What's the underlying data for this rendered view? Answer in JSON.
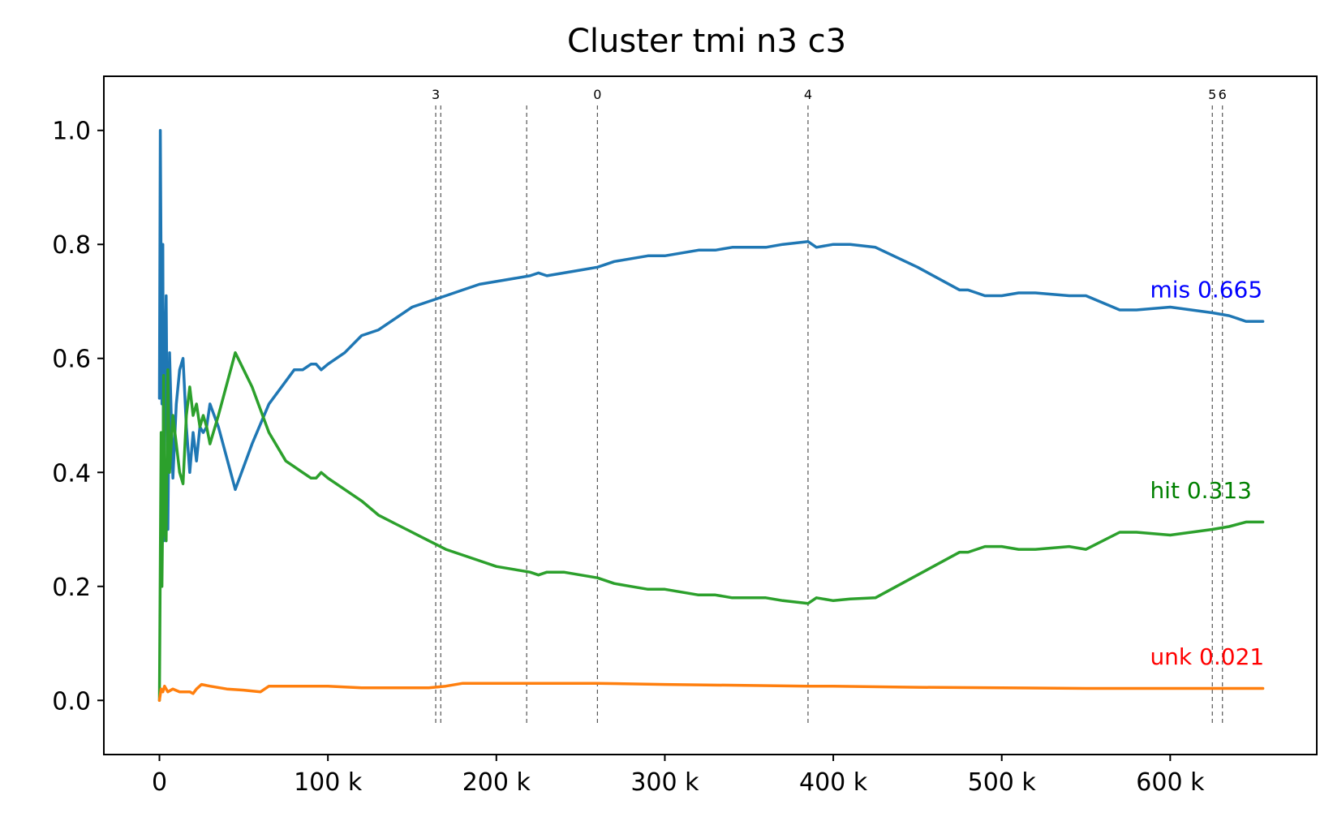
{
  "chart_data": {
    "type": "line",
    "title": "Cluster tmi n3 c3",
    "xlabel": "",
    "ylabel": "",
    "xlim": [
      -33000,
      687000
    ],
    "ylim": [
      -0.095,
      1.095
    ],
    "x_ticks": [
      0,
      100000,
      200000,
      300000,
      400000,
      500000,
      600000
    ],
    "x_tick_labels": [
      "0",
      "100 k",
      "200 k",
      "300 k",
      "400 k",
      "500 k",
      "600 k"
    ],
    "y_ticks": [
      0.0,
      0.2,
      0.4,
      0.6,
      0.8,
      1.0
    ],
    "y_tick_labels": [
      "0.0",
      "0.2",
      "0.4",
      "0.6",
      "0.8",
      "1.0"
    ],
    "grid": false,
    "legend": "none",
    "vlines": [
      {
        "x": 164000,
        "label": "3"
      },
      {
        "x": 167000,
        "label": ""
      },
      {
        "x": 218000,
        "label": ""
      },
      {
        "x": 260000,
        "label": "0"
      },
      {
        "x": 385000,
        "label": "4"
      },
      {
        "x": 625000,
        "label": "5"
      },
      {
        "x": 631000,
        "label": "6"
      }
    ],
    "series": [
      {
        "name": "mis",
        "color": "#1f77b4",
        "end_label": "mis 0.665",
        "end_label_color": "#0000ff",
        "x": [
          0,
          500,
          1000,
          1500,
          2000,
          2500,
          3000,
          4000,
          5000,
          6000,
          8000,
          10000,
          12000,
          14000,
          16000,
          18000,
          20000,
          22000,
          24000,
          26000,
          28000,
          30000,
          35000,
          45000,
          55000,
          65000,
          75000,
          80000,
          85000,
          90000,
          93000,
          96000,
          100000,
          110000,
          120000,
          130000,
          140000,
          150000,
          160000,
          170000,
          180000,
          190000,
          200000,
          210000,
          220000,
          225000,
          230000,
          240000,
          250000,
          260000,
          270000,
          280000,
          290000,
          300000,
          310000,
          320000,
          330000,
          340000,
          350000,
          360000,
          370000,
          385000,
          390000,
          400000,
          410000,
          425000,
          450000,
          475000,
          480000,
          490000,
          500000,
          510000,
          520000,
          540000,
          550000,
          570000,
          580000,
          600000,
          625000,
          635000,
          645000,
          655000
        ],
        "y": [
          0.53,
          1.0,
          0.75,
          0.52,
          0.8,
          0.28,
          0.55,
          0.71,
          0.3,
          0.61,
          0.39,
          0.52,
          0.58,
          0.6,
          0.48,
          0.4,
          0.47,
          0.42,
          0.48,
          0.47,
          0.48,
          0.52,
          0.48,
          0.37,
          0.45,
          0.52,
          0.56,
          0.58,
          0.58,
          0.59,
          0.59,
          0.58,
          0.59,
          0.61,
          0.64,
          0.65,
          0.67,
          0.69,
          0.7,
          0.71,
          0.72,
          0.73,
          0.735,
          0.74,
          0.745,
          0.75,
          0.745,
          0.75,
          0.755,
          0.76,
          0.77,
          0.775,
          0.78,
          0.78,
          0.785,
          0.79,
          0.79,
          0.795,
          0.795,
          0.795,
          0.8,
          0.805,
          0.795,
          0.8,
          0.8,
          0.795,
          0.76,
          0.72,
          0.72,
          0.71,
          0.71,
          0.715,
          0.715,
          0.71,
          0.71,
          0.685,
          0.685,
          0.69,
          0.68,
          0.675,
          0.665,
          0.665
        ]
      },
      {
        "name": "hit",
        "color": "#2ca02c",
        "end_label": "hit 0.313",
        "end_label_color": "#008000",
        "x": [
          0,
          500,
          1000,
          1500,
          2000,
          2500,
          3000,
          4000,
          5000,
          6000,
          8000,
          10000,
          12000,
          14000,
          16000,
          18000,
          20000,
          22000,
          24000,
          26000,
          28000,
          30000,
          35000,
          45000,
          55000,
          65000,
          75000,
          80000,
          85000,
          90000,
          93000,
          96000,
          100000,
          110000,
          120000,
          130000,
          140000,
          150000,
          160000,
          170000,
          180000,
          190000,
          200000,
          210000,
          220000,
          225000,
          230000,
          240000,
          250000,
          260000,
          270000,
          280000,
          290000,
          300000,
          310000,
          320000,
          330000,
          340000,
          350000,
          360000,
          370000,
          385000,
          390000,
          400000,
          410000,
          425000,
          450000,
          475000,
          480000,
          490000,
          500000,
          510000,
          520000,
          540000,
          550000,
          570000,
          580000,
          600000,
          625000,
          635000,
          645000,
          655000
        ],
        "y": [
          0.0,
          0.25,
          0.47,
          0.2,
          0.35,
          0.57,
          0.3,
          0.28,
          0.58,
          0.4,
          0.5,
          0.45,
          0.4,
          0.38,
          0.5,
          0.55,
          0.5,
          0.52,
          0.48,
          0.5,
          0.48,
          0.45,
          0.5,
          0.61,
          0.55,
          0.47,
          0.42,
          0.41,
          0.4,
          0.39,
          0.39,
          0.4,
          0.39,
          0.37,
          0.35,
          0.325,
          0.31,
          0.295,
          0.28,
          0.265,
          0.255,
          0.245,
          0.235,
          0.23,
          0.225,
          0.22,
          0.225,
          0.225,
          0.22,
          0.215,
          0.205,
          0.2,
          0.195,
          0.195,
          0.19,
          0.185,
          0.185,
          0.18,
          0.18,
          0.18,
          0.175,
          0.17,
          0.18,
          0.175,
          0.178,
          0.18,
          0.22,
          0.26,
          0.26,
          0.27,
          0.27,
          0.265,
          0.265,
          0.27,
          0.265,
          0.295,
          0.295,
          0.29,
          0.3,
          0.305,
          0.313,
          0.313
        ]
      },
      {
        "name": "unk",
        "color": "#ff7f0e",
        "end_label": "unk 0.021",
        "end_label_color": "#ff0000",
        "x": [
          0,
          1000,
          2000,
          3000,
          5000,
          8000,
          12000,
          18000,
          20000,
          22000,
          25000,
          30000,
          40000,
          50000,
          60000,
          65000,
          80000,
          100000,
          120000,
          140000,
          160000,
          170000,
          180000,
          200000,
          220000,
          260000,
          300000,
          385000,
          400000,
          450000,
          500000,
          550000,
          600000,
          655000
        ],
        "y": [
          0.0,
          0.02,
          0.015,
          0.025,
          0.015,
          0.02,
          0.015,
          0.015,
          0.012,
          0.02,
          0.028,
          0.025,
          0.02,
          0.018,
          0.015,
          0.025,
          0.025,
          0.025,
          0.022,
          0.022,
          0.022,
          0.025,
          0.03,
          0.03,
          0.03,
          0.03,
          0.028,
          0.025,
          0.025,
          0.023,
          0.022,
          0.021,
          0.021,
          0.021
        ]
      }
    ]
  }
}
